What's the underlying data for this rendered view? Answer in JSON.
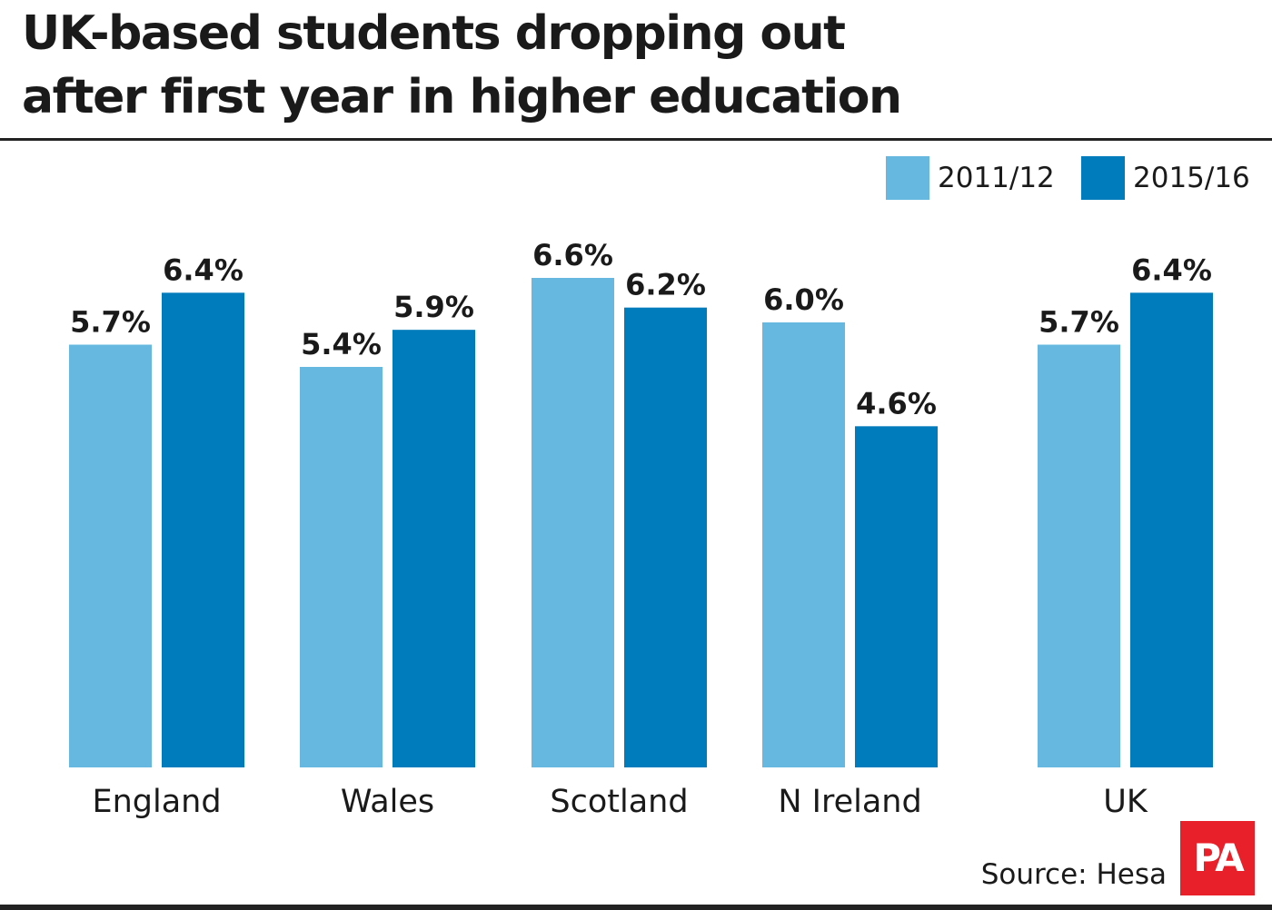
{
  "title_lines": [
    "UK-based students dropping out",
    "after first year in higher education"
  ],
  "source": "Source: Hesa",
  "logo": "PA",
  "colors": {
    "series_2011": "#66b8e0",
    "series_2015": "#007bbb",
    "logo_bg": "#e8202a",
    "text": "#1a1a1a"
  },
  "chart_data": {
    "type": "bar",
    "title": "UK-based students dropping out after first year in higher education",
    "categories": [
      "England",
      "Wales",
      "Scotland",
      "N Ireland",
      "UK"
    ],
    "series": [
      {
        "name": "2011/12",
        "values": [
          5.7,
          5.4,
          6.6,
          6.0,
          5.7
        ],
        "labels": [
          "5.7%",
          "5.4%",
          "6.6%",
          "6.0%",
          "5.7%"
        ]
      },
      {
        "name": "2015/16",
        "values": [
          6.4,
          5.9,
          6.2,
          4.6,
          6.4
        ],
        "labels": [
          "6.4%",
          "5.9%",
          "6.2%",
          "4.6%",
          "6.4%"
        ]
      }
    ],
    "ylim": [
      0,
      6.6
    ],
    "grid": false,
    "legend": "top-right",
    "xlabel": "",
    "ylabel": ""
  }
}
